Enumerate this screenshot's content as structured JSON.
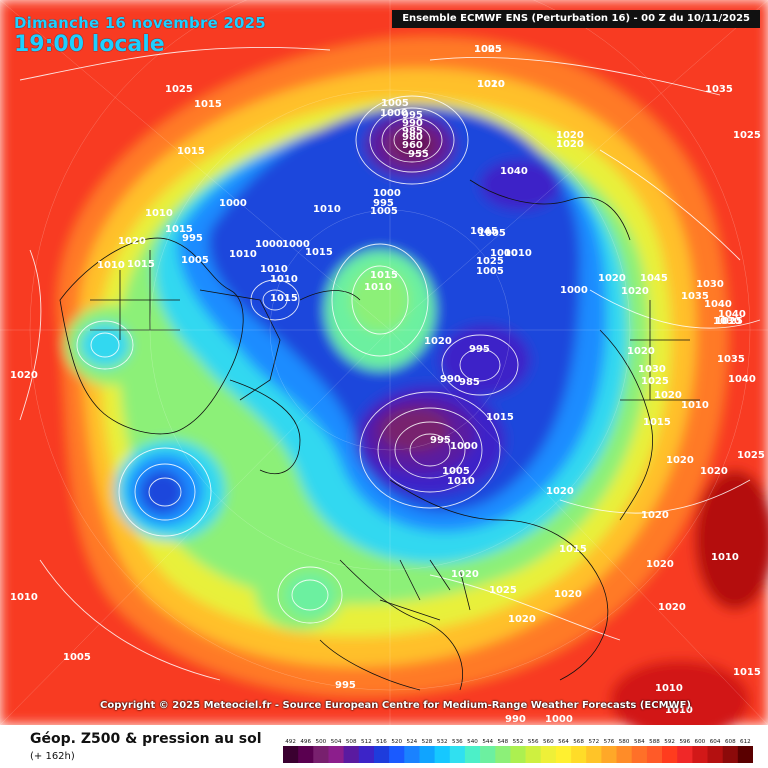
{
  "header": {
    "date": "Dimanche 16 novembre 2025",
    "time": "19:00 locale",
    "model": "Ensemble ECMWF ENS  (Perturbation 16)  -  00 Z du 10/11/2025"
  },
  "copyright": "Copyright © 2025 Meteociel.fr - Source European Centre for Medium-Range Weather Forecasts (ECMWF)",
  "footer": {
    "title": "Géop. Z500 & pression au sol",
    "subtitle": "(+ 162h)"
  },
  "legend": {
    "values": [
      "492",
      "496",
      "500",
      "504",
      "508",
      "512",
      "516",
      "520",
      "524",
      "528",
      "532",
      "536",
      "540",
      "544",
      "548",
      "552",
      "556",
      "560",
      "564",
      "568",
      "572",
      "576",
      "580",
      "584",
      "588",
      "592",
      "596",
      "600",
      "604",
      "608",
      "612"
    ],
    "colors": [
      "#3a0030",
      "#5a0050",
      "#78206e",
      "#8c1e8c",
      "#5a1aa0",
      "#3c24c8",
      "#1e3cdc",
      "#1a5aff",
      "#1a82ff",
      "#10a4ff",
      "#16c8ff",
      "#30e0f0",
      "#4cf0c8",
      "#6cf0a0",
      "#8cf078",
      "#acf050",
      "#cef040",
      "#eef038",
      "#fff030",
      "#ffdc28",
      "#ffc428",
      "#ffa828",
      "#ff8c28",
      "#ff7028",
      "#ff5a28",
      "#ff3c1e",
      "#f02828",
      "#d21818",
      "#b41010",
      "#8c0a0a",
      "#5a0000"
    ]
  },
  "pressure_labels": [
    "1025",
    "1020",
    "1025",
    "1015",
    "1035",
    "1025",
    "1015",
    "1020",
    "1020",
    "1010",
    "1015",
    "1020",
    "1015",
    "1010",
    "1005",
    "1000",
    "995",
    "990",
    "985",
    "980",
    "960",
    "955",
    "1000",
    "995",
    "1005",
    "1010",
    "1000",
    "1005",
    "1010",
    "1000",
    "1015",
    "1010",
    "1010",
    "1015",
    "995",
    "1000",
    "1015",
    "1010",
    "1040",
    "1045",
    "1005",
    "1000",
    "1020",
    "1030",
    "1040",
    "1040",
    "1020",
    "995",
    "990",
    "985",
    "995",
    "1000",
    "1005",
    "1010",
    "1015",
    "1020",
    "1025",
    "1005",
    "1000",
    "1010",
    "1020",
    "1045",
    "1035",
    "1030",
    "1025",
    "1020",
    "1035",
    "1030",
    "1040",
    "1025",
    "1020",
    "1010",
    "1015",
    "1020",
    "1025",
    "1020",
    "1020",
    "1020",
    "1010",
    "1015",
    "1020",
    "1025",
    "1020",
    "1020",
    "1020",
    "1015",
    "1010",
    "1010",
    "1020",
    "1010",
    "1005",
    "995",
    "990",
    "1000",
    "1005",
    "1010"
  ]
}
